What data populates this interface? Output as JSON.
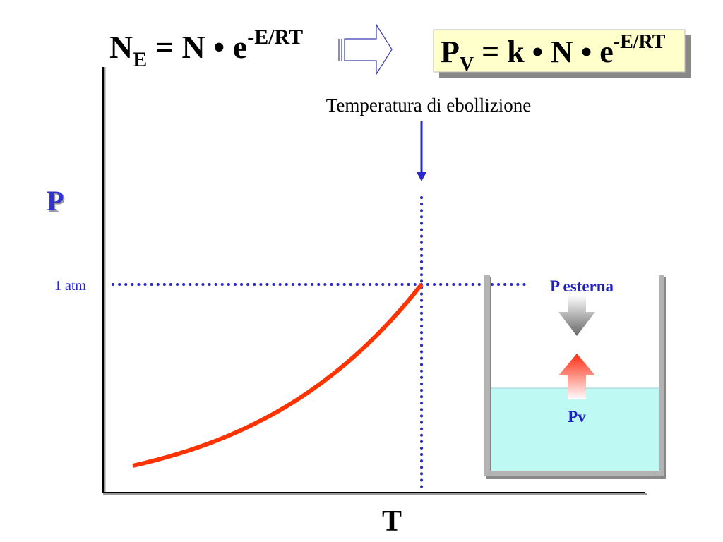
{
  "formula_left": {
    "base": "N",
    "sub": "E",
    "middle": " = N • e",
    "sup": "-E/RT"
  },
  "formula_right": {
    "base": "P",
    "sub": "V",
    "middle": " = k • N • e",
    "sup": "-E/RT"
  },
  "boiling_label": "Temperatura di ebollizione",
  "y_axis_label": "P",
  "x_axis_label": "T",
  "one_atm_label": "1 atm",
  "external_pressure_label": "P esterna",
  "vapor_pressure_label": "Pv",
  "colors": {
    "curve": "#ff3300",
    "guide": "#2a2acc",
    "formula_box": "#ffffcc",
    "water": "#bff9f4",
    "label_blue": "#2020c0"
  }
}
